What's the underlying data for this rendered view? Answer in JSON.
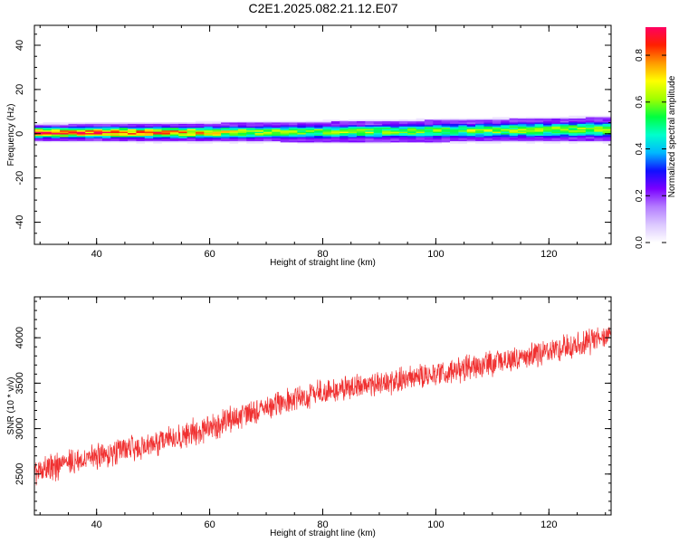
{
  "title": "C2E1.2025.082.21.12.E07",
  "chart_data": [
    {
      "type": "heatmap",
      "xlabel": "Height of straight line (km)",
      "ylabel": "Frequency (Hz)",
      "xlim": [
        29,
        131
      ],
      "ylim": [
        -50,
        49
      ],
      "xticks": [
        "40",
        "60",
        "80",
        "100",
        "120"
      ],
      "yticks": [
        "40",
        "20",
        "0",
        "-20",
        "-40"
      ],
      "colorbar": {
        "label": "Normalized spectral amplitude",
        "range": [
          0,
          0.92
        ],
        "ticks": [
          "0.0",
          "0.2",
          "0.4",
          "0.6",
          "0.8"
        ],
        "colormap": [
          "#ffffff",
          "#dcc8ff",
          "#b47cff",
          "#7a00ff",
          "#1010ff",
          "#00b8ff",
          "#00ffcc",
          "#00ff40",
          "#a0ff00",
          "#ffff00",
          "#ff9a00",
          "#ff2000",
          "#ff0060"
        ]
      },
      "band": {
        "center_hz": [
          [
            29,
            0.3
          ],
          [
            60,
            0.4
          ],
          [
            90,
            0.8
          ],
          [
            131,
            1.8
          ]
        ],
        "half_width_hz": [
          [
            29,
            3
          ],
          [
            131,
            4.5
          ]
        ],
        "peak_amplitude": [
          [
            29,
            0.85
          ],
          [
            50,
            0.78
          ],
          [
            70,
            0.6
          ],
          [
            100,
            0.58
          ],
          [
            131,
            0.62
          ]
        ]
      },
      "grid": false
    },
    {
      "type": "line",
      "xlabel": "Height of straight line (km)",
      "ylabel": "SNR (10 * v/v)",
      "xlim": [
        29,
        131
      ],
      "ylim": [
        2050,
        4450
      ],
      "xticks": [
        "40",
        "60",
        "80",
        "100",
        "120"
      ],
      "yticks": [
        "4000",
        "3500",
        "3000",
        "2500"
      ],
      "color": "#f03030",
      "x_range": [
        29,
        131
      ],
      "trend": [
        [
          29,
          2530
        ],
        [
          40,
          2690
        ],
        [
          50,
          2840
        ],
        [
          60,
          3010
        ],
        [
          70,
          3230
        ],
        [
          80,
          3400
        ],
        [
          90,
          3500
        ],
        [
          100,
          3600
        ],
        [
          110,
          3720
        ],
        [
          120,
          3840
        ],
        [
          131,
          4030
        ]
      ],
      "noise_amplitude": 140,
      "grid": false
    }
  ]
}
